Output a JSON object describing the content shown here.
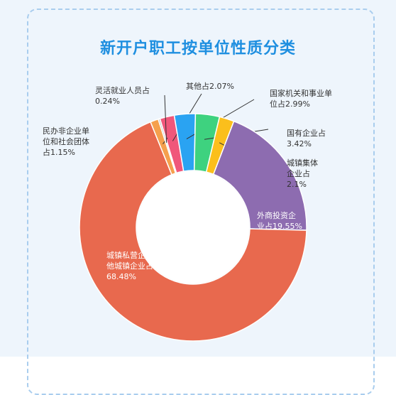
{
  "title": "新开户职工按单位性质分类",
  "chart_data": {
    "type": "pie",
    "title": "新开户职工按单位性质分类",
    "slices": [
      {
        "value": 2.07,
        "color": "#f0577a",
        "label_lines": [
          "其他占2.07%"
        ]
      },
      {
        "value": 2.99,
        "color": "#2aa3f2",
        "label_lines": [
          "国家机关和事业单",
          "位占2.99%"
        ]
      },
      {
        "value": 3.42,
        "color": "#3ed27f",
        "label_lines": [
          "国有企业占",
          "3.42%"
        ]
      },
      {
        "value": 2.1,
        "color": "#fbbf1c",
        "label_lines": [
          "城镇集体",
          "企业占",
          "2.1%"
        ]
      },
      {
        "value": 19.55,
        "color": "#8d6cb0",
        "label_lines": [
          "外商投资企",
          "业占19.55%"
        ]
      },
      {
        "value": 68.48,
        "color": "#e8694e",
        "label_lines": [
          "城镇私营企业及其",
          "他城镇企业占",
          "68.48%"
        ]
      },
      {
        "value": 1.15,
        "color": "#f5a04d",
        "label_lines": [
          "民办非企业单",
          "位和社会团体",
          "占1.15%"
        ]
      },
      {
        "value": 0.24,
        "color": "#bdbdbd",
        "label_lines": [
          "灵活就业人员占",
          "0.24%"
        ]
      }
    ]
  }
}
